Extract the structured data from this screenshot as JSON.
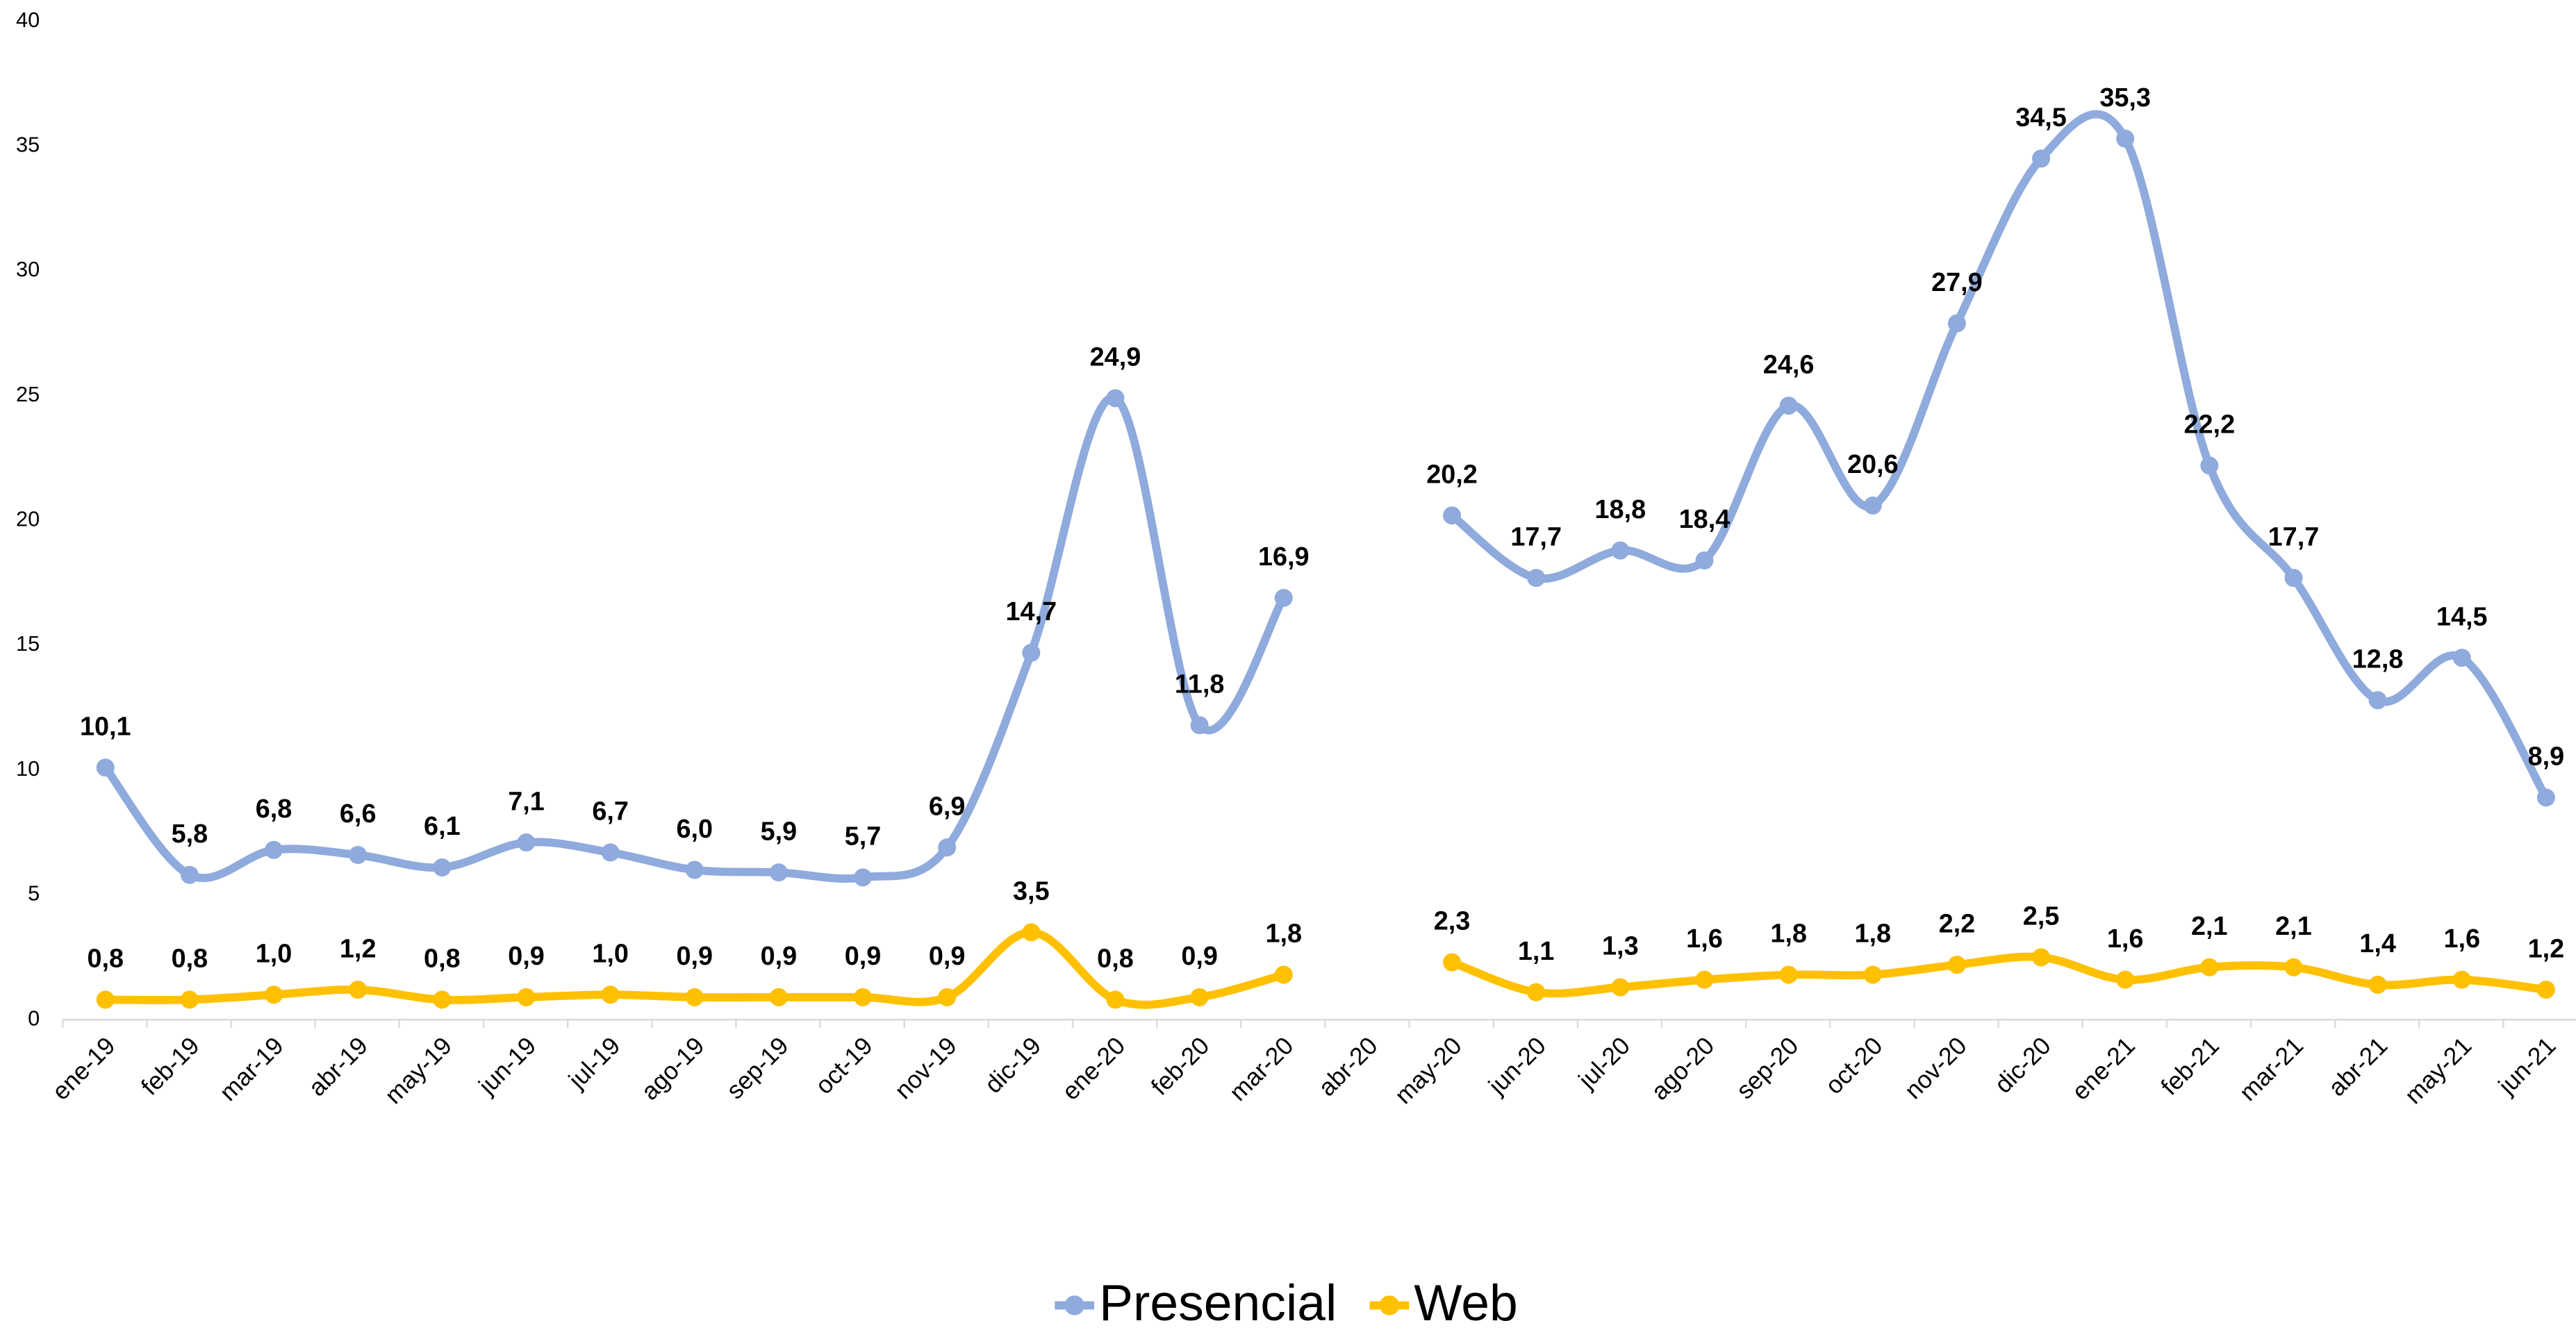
{
  "chart_data": {
    "type": "line",
    "categories": [
      "ene-19",
      "feb-19",
      "mar-19",
      "abr-19",
      "may-19",
      "jun-19",
      "jul-19",
      "ago-19",
      "sep-19",
      "oct-19",
      "nov-19",
      "dic-19",
      "ene-20",
      "feb-20",
      "mar-20",
      "abr-20",
      "may-20",
      "jun-20",
      "jul-20",
      "ago-20",
      "sep-20",
      "oct-20",
      "nov-20",
      "dic-20",
      "ene-21",
      "feb-21",
      "mar-21",
      "abr-21",
      "may-21",
      "jun-21"
    ],
    "series": [
      {
        "name": "Presencial",
        "color": "#8faadc",
        "values": [
          10.1,
          5.8,
          6.8,
          6.6,
          6.1,
          7.1,
          6.7,
          6.0,
          5.9,
          5.7,
          6.9,
          14.7,
          24.9,
          11.8,
          16.9,
          null,
          20.2,
          17.7,
          18.8,
          18.4,
          24.6,
          20.6,
          27.9,
          34.5,
          35.3,
          22.2,
          17.7,
          12.8,
          14.5,
          8.9
        ],
        "value_labels": [
          "10,1",
          "5,8",
          "6,8",
          "6,6",
          "6,1",
          "7,1",
          "6,7",
          "6,0",
          "5,9",
          "5,7",
          "6,9",
          "14,7",
          "24,9",
          "11,8",
          "16,9",
          null,
          "20,2",
          "17,7",
          "18,8",
          "18,4",
          "24,6",
          "20,6",
          "27,9",
          "34,5",
          "35,3",
          "22,2",
          "17,7",
          "12,8",
          "14,5",
          "8,9"
        ]
      },
      {
        "name": "Web",
        "color": "#ffc000",
        "values": [
          0.8,
          0.8,
          1.0,
          1.2,
          0.8,
          0.9,
          1.0,
          0.9,
          0.9,
          0.9,
          0.9,
          3.5,
          0.8,
          0.9,
          1.8,
          null,
          2.3,
          1.1,
          1.3,
          1.6,
          1.8,
          1.8,
          2.2,
          2.5,
          1.6,
          2.1,
          2.1,
          1.4,
          1.6,
          1.2
        ],
        "value_labels": [
          "0,8",
          "0,8",
          "1,0",
          "1,2",
          "0,8",
          "0,9",
          "1,0",
          "0,9",
          "0,9",
          "0,9",
          "0,9",
          "3,5",
          "0,8",
          "0,9",
          "1,8",
          null,
          "2,3",
          "1,1",
          "1,3",
          "1,6",
          "1,8",
          "1,8",
          "2,2",
          "2,5",
          "1,6",
          "2,1",
          "2,1",
          "1,4",
          "1,6",
          "1,2"
        ]
      }
    ],
    "ylim": [
      0,
      40
    ],
    "yticks": [
      0,
      5,
      10,
      15,
      20,
      25,
      30,
      35,
      40
    ],
    "grid": false,
    "legend": "bottom",
    "smooth": true
  }
}
